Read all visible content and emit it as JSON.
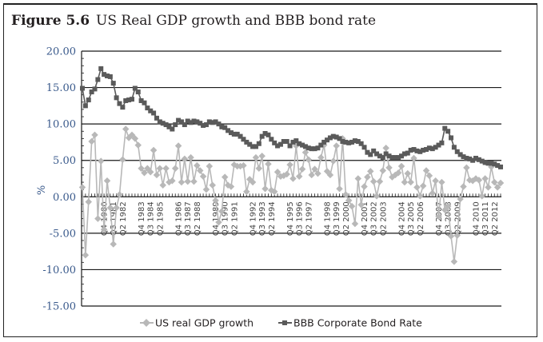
{
  "figure": {
    "label": "Figure 5.6",
    "title": "US Real GDP growth and BBB bond rate"
  },
  "chart_data": {
    "type": "line",
    "title": "US Real GDP growth and BBB bond rate",
    "xlabel": "",
    "ylabel": "%",
    "ylim": [
      -15,
      20
    ],
    "yticks": [
      20,
      15,
      10,
      5,
      0,
      -5,
      -10,
      -15
    ],
    "ytick_labels": [
      "20.00",
      "15.00",
      "10.00",
      "5.00",
      "0.00",
      "-5.00",
      "-10.00",
      "-15.00"
    ],
    "grid": "horizontal",
    "legend_position": "bottom",
    "x_start": "Q1 1979",
    "x_end": "Q4 2012",
    "x_tick_labels": [
      "Q4 1980",
      "Q3 1981",
      "Q2 1982",
      "Q4 1983",
      "Q3 1984",
      "Q2 1985",
      "Q4 1986",
      "Q3 1987",
      "Q2 1988",
      "Q4 1989",
      "Q3 1990",
      "Q2 1991",
      "Q4 1992",
      "Q3 1993",
      "Q2 1994",
      "Q4 1995",
      "Q3 1996",
      "Q2 1997",
      "Q4 1998",
      "Q3 1999",
      "Q2 2000",
      "Q4 2001",
      "Q3 2002",
      "Q2 2003",
      "Q4 2004",
      "Q3 2005",
      "Q2 2006",
      "Q4 2007",
      "Q3 2008",
      "Q2 2009",
      "Q4 2010",
      "Q3 2011",
      "Q2 2012"
    ],
    "x_tick_indices": [
      7,
      10,
      13,
      19,
      22,
      25,
      31,
      34,
      37,
      43,
      46,
      49,
      55,
      58,
      61,
      67,
      70,
      73,
      79,
      82,
      85,
      91,
      94,
      97,
      103,
      106,
      109,
      115,
      118,
      121,
      127,
      130,
      133
    ],
    "series": [
      {
        "name": "US real GDP growth",
        "color": "#b8b8b8",
        "marker": "diamond",
        "values": [
          1.3,
          -8.0,
          -0.7,
          7.6,
          8.5,
          -3.0,
          4.9,
          -4.5,
          2.2,
          -1.5,
          -6.5,
          -1.5,
          0.3,
          5.1,
          9.3,
          8.1,
          8.5,
          8.0,
          7.1,
          3.9,
          3.3,
          3.9,
          3.4,
          6.4,
          3.0,
          3.9,
          1.6,
          3.9,
          2.0,
          2.2,
          3.9,
          7.0,
          2.0,
          5.2,
          2.1,
          5.4,
          2.1,
          4.3,
          3.6,
          2.8,
          1.0,
          4.2,
          1.6,
          -0.5,
          -3.5,
          -2.0,
          2.7,
          1.6,
          1.4,
          4.4,
          4.2,
          4.2,
          4.3,
          0.7,
          2.4,
          2.0,
          5.4,
          3.9,
          5.6,
          1.1,
          4.5,
          0.9,
          0.7,
          3.4,
          2.8,
          2.9,
          3.1,
          4.4,
          2.5,
          7.0,
          2.8,
          3.8,
          6.1,
          5.1,
          3.0,
          3.8,
          3.2,
          5.4,
          7.1,
          3.5,
          3.0,
          4.9,
          7.0,
          1.1,
          8.0,
          0.3,
          -0.5,
          -1.3,
          -3.7,
          2.5,
          -1.1,
          1.4,
          2.7,
          3.5,
          2.1,
          0.1,
          2.1,
          3.6,
          6.7,
          4.0,
          2.7,
          3.0,
          3.3,
          4.2,
          2.0,
          3.2,
          2.0,
          5.3,
          1.3,
          0.1,
          1.5,
          3.6,
          2.9,
          0.5,
          2.2,
          -2.7,
          2.0,
          -1.8,
          -1.3,
          -5.4,
          -8.9,
          -5.3,
          -0.3,
          1.4,
          4.0,
          2.3,
          2.2,
          2.5,
          2.3,
          0.1,
          2.5,
          1.3,
          4.1,
          2.0,
          1.3,
          1.9
        ]
      },
      {
        "name": "BBB Corporate Bond Rate",
        "color": "#5a5a5a",
        "marker": "square",
        "values": [
          14.9,
          12.5,
          13.3,
          14.4,
          14.8,
          16.1,
          17.6,
          16.8,
          16.6,
          16.5,
          15.6,
          13.6,
          12.8,
          12.3,
          13.2,
          13.3,
          13.4,
          14.9,
          14.4,
          13.2,
          12.9,
          12.2,
          11.8,
          11.5,
          10.8,
          10.3,
          10.1,
          9.9,
          9.6,
          9.3,
          9.9,
          10.5,
          10.3,
          9.9,
          10.4,
          10.2,
          10.4,
          10.3,
          10.1,
          9.8,
          9.9,
          10.3,
          10.2,
          10.3,
          10.0,
          9.6,
          9.5,
          9.1,
          8.8,
          8.6,
          8.6,
          8.3,
          7.9,
          7.5,
          7.2,
          6.9,
          6.9,
          7.3,
          8.3,
          8.7,
          8.5,
          7.9,
          7.4,
          7.0,
          7.2,
          7.6,
          7.6,
          7.0,
          7.5,
          7.7,
          7.3,
          7.1,
          6.9,
          6.7,
          6.6,
          6.6,
          6.7,
          7.1,
          7.5,
          7.8,
          8.1,
          8.3,
          8.2,
          8.0,
          7.6,
          7.5,
          7.4,
          7.5,
          7.7,
          7.6,
          7.3,
          6.8,
          6.1,
          5.8,
          6.3,
          5.9,
          5.6,
          5.4,
          5.9,
          5.6,
          5.4,
          5.4,
          5.4,
          5.6,
          5.9,
          6.0,
          6.4,
          6.5,
          6.3,
          6.2,
          6.4,
          6.5,
          6.7,
          6.6,
          6.8,
          7.1,
          7.4,
          9.4,
          9.0,
          8.1,
          6.8,
          6.2,
          5.8,
          5.5,
          5.3,
          5.2,
          5.0,
          5.3,
          5.1,
          4.9,
          4.7,
          4.6,
          4.6,
          4.5,
          4.3,
          4.1
        ]
      }
    ]
  }
}
